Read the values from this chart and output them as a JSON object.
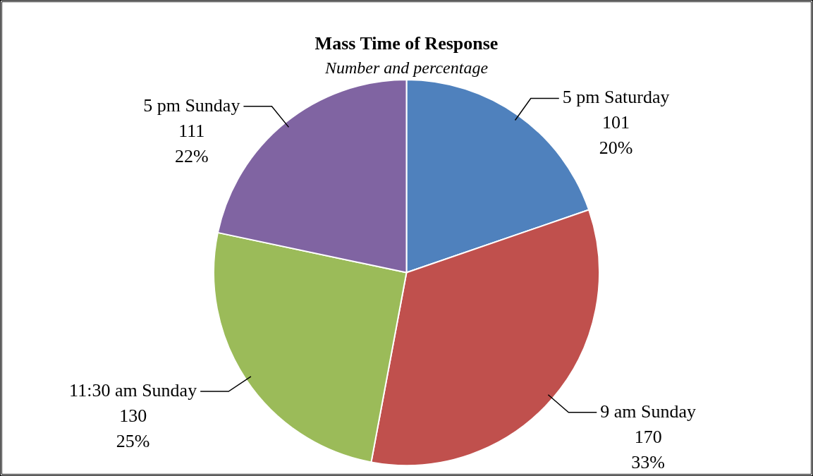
{
  "chart_data": {
    "type": "pie",
    "title": "Mass Time of Response",
    "subtitle": "Number and percentage",
    "categories": [
      "5 pm Saturday",
      "9 am Sunday",
      "11:30 am Sunday",
      "5 pm Sunday"
    ],
    "values": [
      101,
      170,
      130,
      111
    ],
    "colors": [
      "#4f81bd",
      "#c0504d",
      "#9bbb59",
      "#8064a2"
    ],
    "value_labels": [
      "101\n20%",
      "170\n33%",
      "130\n25%",
      "111\n22%"
    ],
    "legend": false
  }
}
